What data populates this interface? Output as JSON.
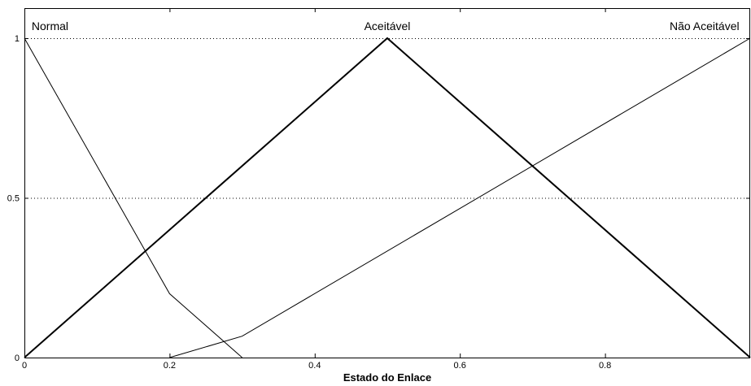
{
  "chart_data": {
    "type": "line",
    "title": "",
    "xlabel": "Estado do Enlace",
    "ylabel": "",
    "xlim": [
      0,
      1
    ],
    "ylim": [
      0,
      1
    ],
    "x_ticks": [
      {
        "value": 0,
        "label": "0"
      },
      {
        "value": 0.2,
        "label": "0.2"
      },
      {
        "value": 0.4,
        "label": "0.4"
      },
      {
        "value": 0.6,
        "label": "0.6"
      },
      {
        "value": 0.8,
        "label": "0.8"
      }
    ],
    "y_ticks": [
      {
        "value": 0,
        "label": "0"
      },
      {
        "value": 0.5,
        "label": "0.5"
      },
      {
        "value": 1,
        "label": "1"
      }
    ],
    "gridlines_y": [
      0.5,
      1
    ],
    "series": [
      {
        "name": "Normal",
        "color": "#000000",
        "bold": false,
        "label_position": {
          "x": 0.01,
          "y": 1.01
        },
        "label_anchor": "start",
        "points": [
          [
            0,
            1
          ],
          [
            0.2,
            0.2
          ],
          [
            0.3,
            0
          ]
        ]
      },
      {
        "name": "Aceitável",
        "color": "#000000",
        "bold": true,
        "label_position": {
          "x": 0.5,
          "y": 1.01
        },
        "label_anchor": "middle",
        "points": [
          [
            0,
            0
          ],
          [
            0.5,
            1
          ],
          [
            1,
            0
          ]
        ]
      },
      {
        "name": "Não Aceitável",
        "color": "#000000",
        "bold": false,
        "label_position": {
          "x": 0.985,
          "y": 1.01
        },
        "label_anchor": "end",
        "points": [
          [
            0.2,
            0
          ],
          [
            0.3,
            0.067
          ],
          [
            1,
            1
          ]
        ]
      }
    ]
  }
}
